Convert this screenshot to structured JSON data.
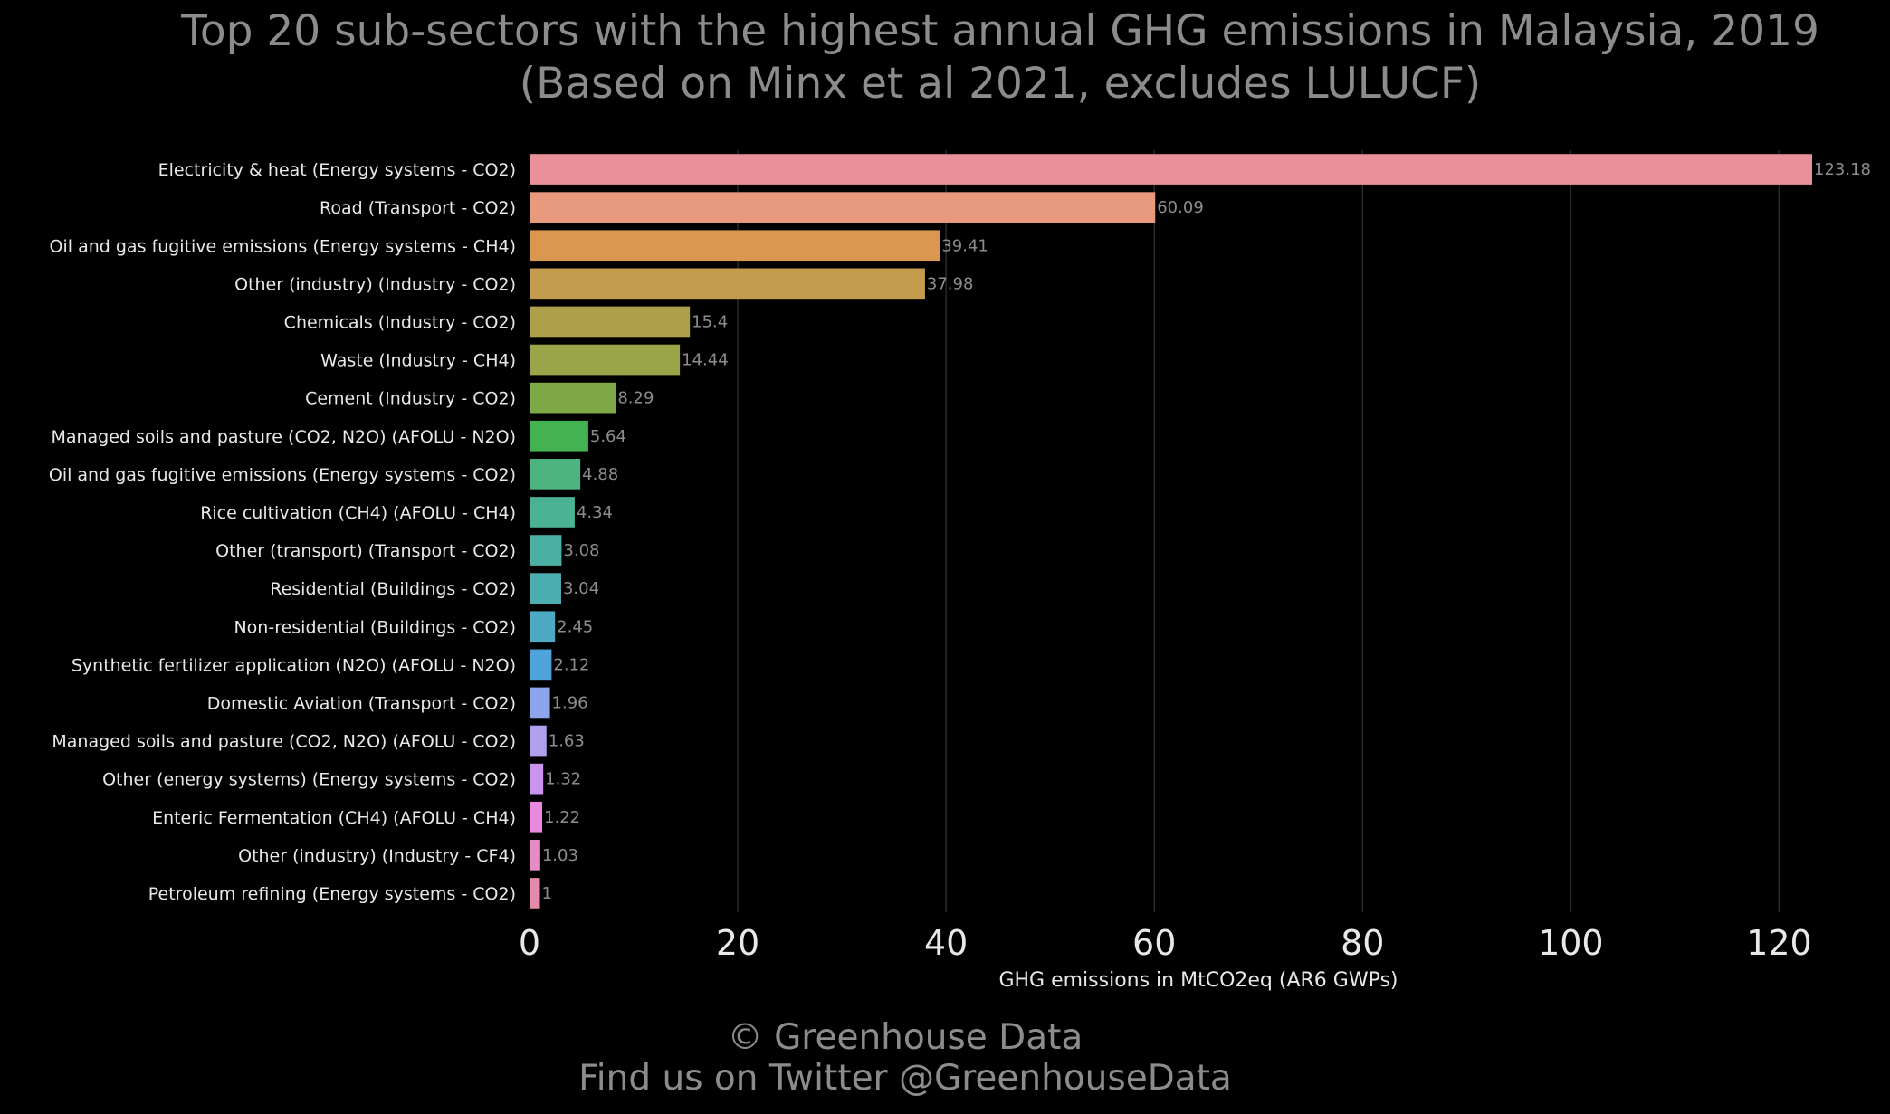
{
  "chart_data": {
    "type": "bar",
    "orientation": "horizontal",
    "title": "Top 20 sub-sectors with the highest annual GHG emissions in Malaysia, 2019",
    "subtitle": "(Based on Minx et al 2021, excludes LULUCF)",
    "xlabel": "GHG emissions in MtCO2eq (AR6 GWPs)",
    "ylabel": "",
    "xlim": [
      0,
      125
    ],
    "xticks": [
      0,
      20,
      40,
      60,
      80,
      100,
      120
    ],
    "grid": "vertical",
    "categories": [
      "Electricity & heat (Energy systems - CO2)",
      "Road (Transport - CO2)",
      "Oil and gas fugitive emissions (Energy systems - CH4)",
      "Other (industry) (Industry - CO2)",
      "Chemicals (Industry - CO2)",
      "Waste (Industry - CH4)",
      "Cement (Industry - CO2)",
      "Managed soils and pasture (CO2, N2O) (AFOLU - N2O)",
      "Oil and gas fugitive emissions (Energy systems - CO2)",
      "Rice cultivation (CH4) (AFOLU - CH4)",
      "Other (transport) (Transport - CO2)",
      "Residential (Buildings - CO2)",
      "Non-residential (Buildings - CO2)",
      "Synthetic fertilizer application (N2O) (AFOLU - N2O)",
      "Domestic Aviation (Transport - CO2)",
      "Managed soils and pasture (CO2, N2O) (AFOLU - CO2)",
      "Other (energy systems) (Energy systems - CO2)",
      "Enteric Fermentation (CH4) (AFOLU - CH4)",
      "Other (industry) (Industry - CF4)",
      "Petroleum refining (Energy systems - CO2)"
    ],
    "values": [
      123.18,
      60.09,
      39.41,
      37.98,
      15.4,
      14.44,
      8.29,
      5.64,
      4.88,
      4.34,
      3.08,
      3.04,
      2.45,
      2.12,
      1.96,
      1.63,
      1.32,
      1.22,
      1.03,
      1
    ],
    "value_labels": [
      "123.18",
      "60.09",
      "39.41",
      "37.98",
      "15.4",
      "14.44",
      "8.29",
      "5.64",
      "4.88",
      "4.34",
      "3.08",
      "3.04",
      "2.45",
      "2.12",
      "1.96",
      "1.63",
      "1.32",
      "1.22",
      "1.03",
      "1"
    ],
    "colors": [
      "#e8919b",
      "#e89a7f",
      "#d99750",
      "#c39d4d",
      "#aea04a",
      "#9aa448",
      "#7fa947",
      "#43b253",
      "#4db380",
      "#4bb293",
      "#4cb0a3",
      "#4caeb0",
      "#4eaac2",
      "#4ea3d8",
      "#8ea5ec",
      "#b0a0ee",
      "#c994ec",
      "#e989e0",
      "#e78bc5",
      "#e68aad"
    ]
  },
  "credits": {
    "line1": "© Greenhouse Data",
    "line2": "Find us on Twitter @GreenhouseData"
  },
  "style": {
    "background": "#000000",
    "title_color": "#8c8c8c",
    "label_color": "#e8e8e8",
    "value_label_color": "#8c8c8c",
    "grid_color": "#2a2a2a"
  }
}
